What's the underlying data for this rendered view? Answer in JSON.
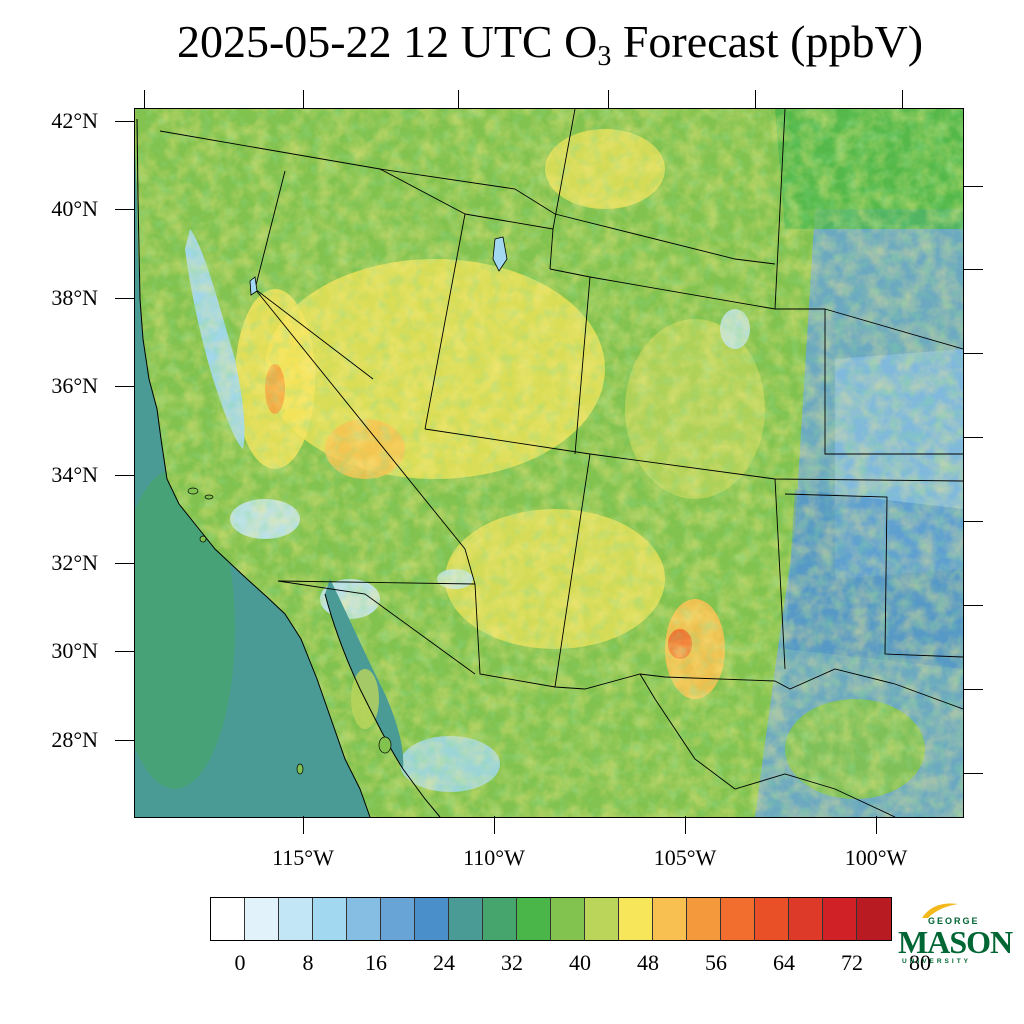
{
  "title": {
    "prefix": "2025-05-22 12 UTC O",
    "subscript": "3",
    "suffix": " Forecast (ppbV)"
  },
  "map": {
    "lat_labels": [
      "42°N",
      "40°N",
      "38°N",
      "36°N",
      "34°N",
      "32°N",
      "30°N",
      "28°N"
    ],
    "lat_values": [
      42,
      40,
      38,
      36,
      34,
      32,
      30,
      28
    ],
    "lon_labels": [
      "115°W",
      "110°W",
      "105°W",
      "100°W"
    ],
    "lon_values": [
      -115,
      -110,
      -105,
      -100
    ],
    "region": "Western / Southwestern United States and Northern Mexico",
    "ocean_color": "#4a9a95",
    "land_color": "#7ec24f"
  },
  "colorbar": {
    "colors": [
      "#ffffff",
      "#e2f2fb",
      "#c2e6f6",
      "#a2d8f0",
      "#86bde2",
      "#68a5d6",
      "#4a8fca",
      "#4a9a95",
      "#46a56c",
      "#4ab64a",
      "#82c24e",
      "#bad55a",
      "#f7e55a",
      "#f8c050",
      "#f59a3c",
      "#f26e2e",
      "#ea5028",
      "#de3a2a",
      "#d02226",
      "#b81c22",
      "#a01a20",
      "#861a1c"
    ],
    "labels": [
      "0",
      "8",
      "16",
      "24",
      "32",
      "40",
      "48",
      "56",
      "64",
      "72",
      "80"
    ],
    "label_values": [
      0,
      8,
      16,
      24,
      32,
      40,
      48,
      56,
      64,
      72,
      80
    ]
  },
  "logo": {
    "line1": "GEORGE",
    "line2": "MASON",
    "line3": "UNIVERSITY"
  }
}
